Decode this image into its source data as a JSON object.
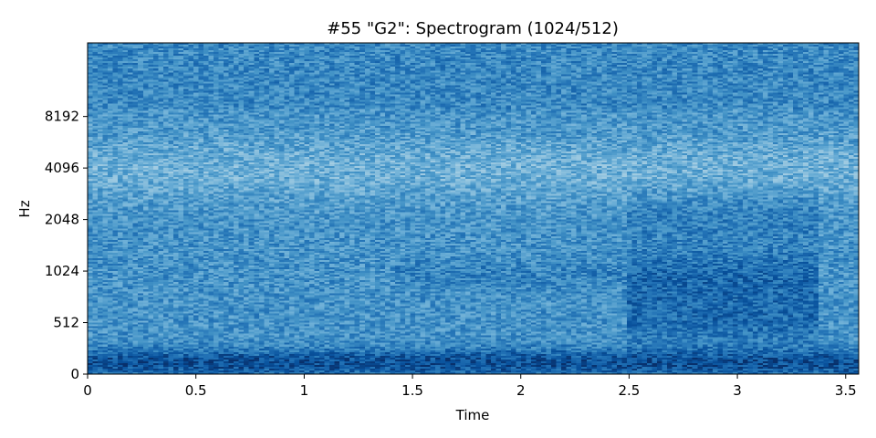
{
  "chart_data": {
    "type": "heatmap",
    "title": "#55 \"G2\": Spectrogram (1024/512)",
    "xlabel": "Time",
    "ylabel": "Hz",
    "xlim": [
      0,
      3.56
    ],
    "x_ticks": [
      {
        "value": 0,
        "label": "0"
      },
      {
        "value": 0.5,
        "label": "0.5"
      },
      {
        "value": 1,
        "label": "1"
      },
      {
        "value": 1.5,
        "label": "1.5"
      },
      {
        "value": 2,
        "label": "2"
      },
      {
        "value": 2.5,
        "label": "2.5"
      },
      {
        "value": 3,
        "label": "3"
      },
      {
        "value": 3.5,
        "label": "3.5"
      }
    ],
    "y_scale": "log2 (symmetric, linear near 0)",
    "ylim": [
      0,
      22050
    ],
    "y_ticks": [
      {
        "value": 0,
        "label": "0"
      },
      {
        "value": 512,
        "label": "512"
      },
      {
        "value": 1024,
        "label": "1024"
      },
      {
        "value": 2048,
        "label": "2048"
      },
      {
        "value": 4096,
        "label": "4096"
      },
      {
        "value": 8192,
        "label": "8192"
      }
    ],
    "colormap": "Blues",
    "colors": {
      "low": "#f7fbff",
      "mid": "#6baed6",
      "high": "#08306b"
    },
    "grid": false,
    "legend": "none"
  }
}
